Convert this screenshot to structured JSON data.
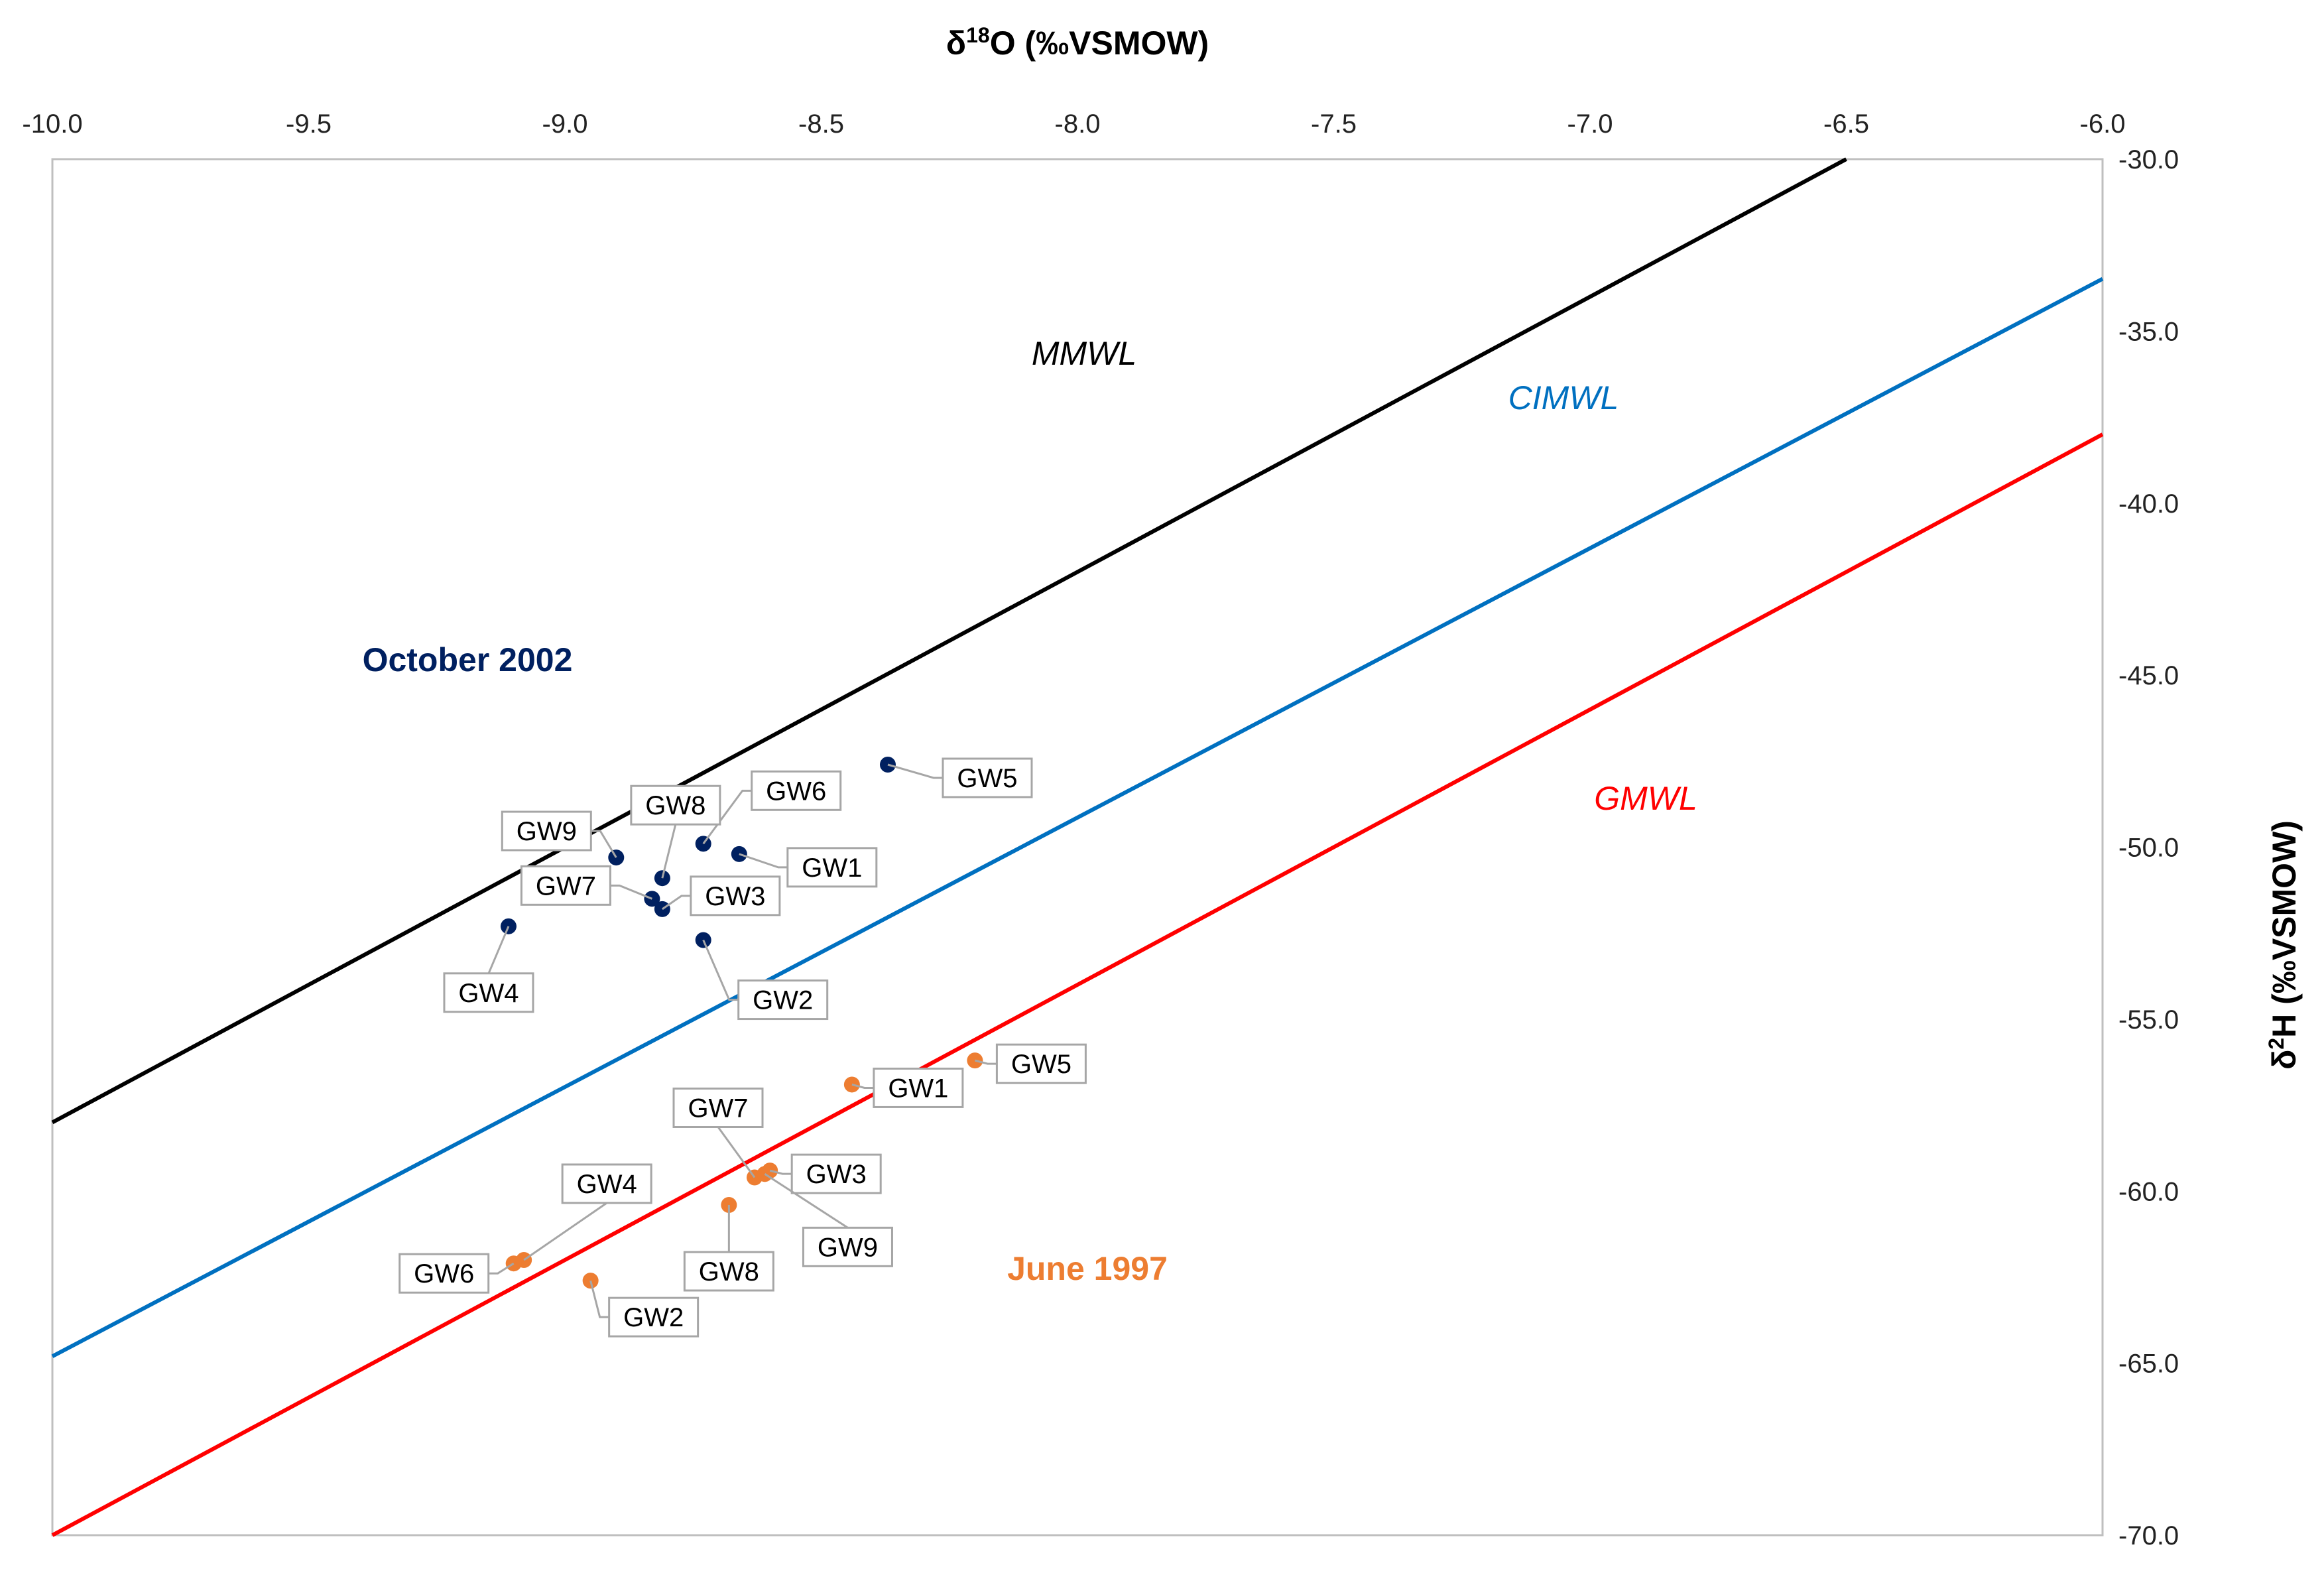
{
  "chart_data": {
    "type": "scatter",
    "title": "",
    "xlabel": "δ18O (‰VSMOW)",
    "ylabel": "δ2H (‰VSMOW)",
    "xlabel_parts": {
      "prefix": "δ",
      "sup": "18",
      "main": "O (‰VSMOW)"
    },
    "ylabel_parts": {
      "prefix": "δ",
      "sup": "2",
      "main": "H (‰VSMOW)"
    },
    "xlim": [
      -10.0,
      -6.0
    ],
    "ylim": [
      -70.0,
      -30.0
    ],
    "x_ticks": [
      "-10.0",
      "-9.5",
      "-9.0",
      "-8.5",
      "-8.0",
      "-7.5",
      "-7.0",
      "-6.5",
      "-6.0"
    ],
    "y_ticks": [
      "-30.0",
      "-35.0",
      "-40.0",
      "-45.0",
      "-50.0",
      "-55.0",
      "-60.0",
      "-65.0",
      "-70.0"
    ],
    "x_axis_position": "top",
    "y_axis_position": "right",
    "grid": false,
    "lines": [
      {
        "name": "MMWL",
        "slope": 8.0,
        "intercept": 22.0,
        "color": "#000000"
      },
      {
        "name": "CIMWL",
        "slope": 7.83,
        "intercept": 13.5,
        "color": "#0070c0"
      },
      {
        "name": "GMWL",
        "slope": 8.0,
        "intercept": 10.0,
        "color": "#ff0000"
      }
    ],
    "series": [
      {
        "name": "October 2002",
        "color": "#002060",
        "points": [
          {
            "label": "GW1",
            "x": -8.66,
            "y": -50.2
          },
          {
            "label": "GW2",
            "x": -8.73,
            "y": -52.7
          },
          {
            "label": "GW3",
            "x": -8.81,
            "y": -51.8
          },
          {
            "label": "GW4",
            "x": -9.11,
            "y": -52.3
          },
          {
            "label": "GW5",
            "x": -8.37,
            "y": -47.6
          },
          {
            "label": "GW6",
            "x": -8.73,
            "y": -49.9
          },
          {
            "label": "GW7",
            "x": -8.83,
            "y": -51.5
          },
          {
            "label": "GW8",
            "x": -8.81,
            "y": -50.9
          },
          {
            "label": "GW9",
            "x": -8.9,
            "y": -50.3
          }
        ]
      },
      {
        "name": "June 1997",
        "color": "#ed7d31",
        "points": [
          {
            "label": "GW1",
            "x": -8.44,
            "y": -56.9
          },
          {
            "label": "GW2",
            "x": -8.95,
            "y": -62.6
          },
          {
            "label": "GW3",
            "x": -8.6,
            "y": -59.4
          },
          {
            "label": "GW4",
            "x": -9.08,
            "y": -62.0
          },
          {
            "label": "GW5",
            "x": -8.2,
            "y": -56.2
          },
          {
            "label": "GW6",
            "x": -9.1,
            "y": -62.1
          },
          {
            "label": "GW7",
            "x": -8.63,
            "y": -59.6
          },
          {
            "label": "GW8",
            "x": -8.68,
            "y": -60.4
          },
          {
            "label": "GW9",
            "x": -8.61,
            "y": -59.5
          }
        ]
      }
    ],
    "annotations": [
      "October 2002",
      "June 1997",
      "MMWL",
      "CIMWL",
      "GMWL"
    ]
  }
}
